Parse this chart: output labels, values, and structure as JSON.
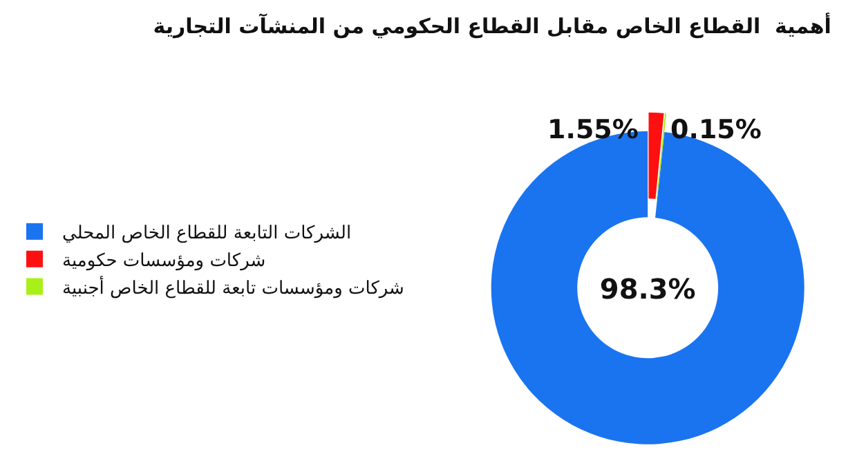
{
  "chart_data": {
    "type": "donut",
    "title": "أهمية  القطاع الخاص مقابل القطاع الحكومي من المنشآت التجارية",
    "categories": [
      "الشركات التابعة للقطاع الخاص المحلي",
      "شركات ومؤسسات حكومية",
      "شركات ومؤسسات تابعة للقطاع الخاص أجنبية"
    ],
    "values": [
      98.3,
      1.55,
      0.15
    ],
    "value_labels": [
      "98.3%",
      "1.55%",
      "0.15%"
    ],
    "colors": [
      "#1a74f0",
      "#ff1010",
      "#a8f018"
    ],
    "legend": "left"
  }
}
